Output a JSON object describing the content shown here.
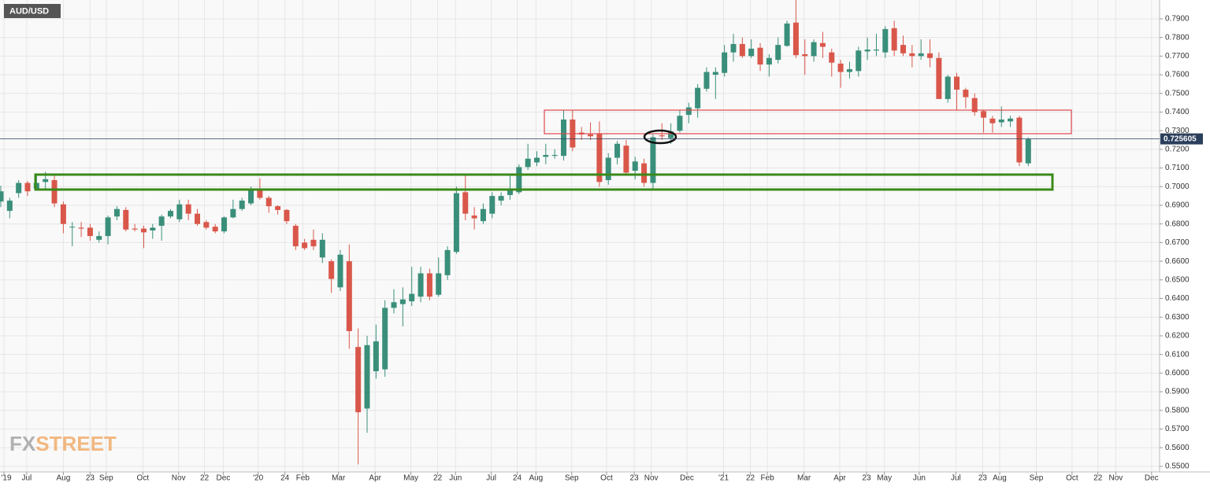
{
  "chart_data": {
    "type": "candlestick",
    "title": "AUD/USD",
    "watermark": [
      "FX",
      "STREET"
    ],
    "up_color": "#3a8f7a",
    "down_color": "#d9574a",
    "grid": true,
    "last_price": 0.725605,
    "x": [
      0,
      1,
      2,
      3,
      4,
      5,
      6,
      7,
      8,
      9,
      10,
      11,
      12,
      13,
      14,
      15,
      16,
      17,
      18,
      19,
      20,
      21,
      22,
      23,
      24,
      25,
      26,
      27,
      28,
      29,
      30,
      31,
      32,
      33,
      34,
      35,
      36,
      37,
      38,
      39,
      40,
      41,
      42,
      43,
      44,
      45,
      46,
      47,
      48,
      49,
      50,
      51,
      52,
      53,
      54,
      55,
      56,
      57,
      58,
      59,
      60,
      61,
      62,
      63,
      64,
      65,
      66,
      67,
      68,
      69,
      70,
      71,
      72,
      73,
      74,
      75,
      76,
      77,
      78,
      79,
      80,
      81,
      82,
      83,
      84,
      85,
      86,
      87,
      88,
      89,
      90,
      91,
      92,
      93,
      94,
      95,
      96,
      97,
      98,
      99,
      100,
      101,
      102,
      103,
      104,
      105,
      106,
      107,
      108,
      109,
      110,
      111,
      112,
      113,
      114,
      115
    ],
    "open": [
      0.692,
      0.687,
      0.6965,
      0.702,
      0.699,
      0.7025,
      0.7035,
      0.6905,
      0.6785,
      0.678,
      0.678,
      0.6715,
      0.6735,
      0.684,
      0.6875,
      0.6775,
      0.6775,
      0.6765,
      0.679,
      0.684,
      0.6825,
      0.6905,
      0.6855,
      0.681,
      0.6785,
      0.676,
      0.6835,
      0.688,
      0.691,
      0.6985,
      0.694,
      0.6895,
      0.6875,
      0.679,
      0.67,
      0.6715,
      0.662,
      0.66,
      0.646,
      0.66,
      0.614,
      0.581,
      0.601,
      0.602,
      0.635,
      0.637,
      0.6385,
      0.641,
      0.6535,
      0.642,
      0.6525,
      0.665,
      0.697,
      0.6845,
      0.6815,
      0.6855,
      0.6925,
      0.6955,
      0.697,
      0.7105,
      0.713,
      0.716,
      0.7165,
      0.7165,
      0.736,
      0.729,
      0.728,
      0.7285,
      0.7035,
      0.7155,
      0.722,
      0.7085,
      0.7125,
      0.702,
      0.7275,
      0.726,
      0.73,
      0.7385,
      0.742,
      0.7525,
      0.76,
      0.761,
      0.772,
      0.7765,
      0.77,
      0.7745,
      0.7655,
      0.768,
      0.7755,
      0.788,
      0.771,
      0.77,
      0.777,
      0.772,
      0.766,
      0.7615,
      0.762,
      0.7725,
      0.773,
      0.772,
      0.785,
      0.776,
      0.7715,
      0.77,
      0.7715,
      0.769,
      0.747,
      0.759,
      0.752,
      0.7475,
      0.7405,
      0.7365,
      0.7345,
      0.735,
      0.737,
      0.7125
    ],
    "high": [
      0.7005,
      0.694,
      0.7035,
      0.703,
      0.707,
      0.708,
      0.706,
      0.692,
      0.681,
      0.681,
      0.68,
      0.676,
      0.6845,
      0.6895,
      0.689,
      0.68,
      0.679,
      0.68,
      0.685,
      0.688,
      0.693,
      0.693,
      0.688,
      0.682,
      0.68,
      0.684,
      0.693,
      0.694,
      0.7,
      0.7045,
      0.695,
      0.69,
      0.688,
      0.68,
      0.672,
      0.677,
      0.675,
      0.661,
      0.666,
      0.669,
      0.624,
      0.62,
      0.626,
      0.639,
      0.645,
      0.646,
      0.657,
      0.657,
      0.656,
      0.662,
      0.668,
      0.7,
      0.707,
      0.689,
      0.691,
      0.697,
      0.697,
      0.706,
      0.712,
      0.723,
      0.719,
      0.723,
      0.72,
      0.741,
      0.741,
      0.732,
      0.7345,
      0.735,
      0.718,
      0.7245,
      0.725,
      0.716,
      0.715,
      0.728,
      0.734,
      0.734,
      0.741,
      0.745,
      0.755,
      0.764,
      0.764,
      0.776,
      0.782,
      0.78,
      0.779,
      0.777,
      0.771,
      0.78,
      0.789,
      0.801,
      0.779,
      0.779,
      0.783,
      0.774,
      0.768,
      0.767,
      0.775,
      0.78,
      0.782,
      0.786,
      0.789,
      0.781,
      0.776,
      0.779,
      0.779,
      0.772,
      0.76,
      0.761,
      0.753,
      0.75,
      0.741,
      0.738,
      0.743,
      0.738,
      0.738,
      0.7265
    ],
    "low": [
      0.689,
      0.683,
      0.694,
      0.695,
      0.698,
      0.699,
      0.689,
      0.675,
      0.668,
      0.673,
      0.671,
      0.67,
      0.669,
      0.682,
      0.676,
      0.676,
      0.667,
      0.672,
      0.671,
      0.683,
      0.681,
      0.682,
      0.679,
      0.677,
      0.675,
      0.675,
      0.683,
      0.687,
      0.69,
      0.693,
      0.686,
      0.685,
      0.68,
      0.666,
      0.666,
      0.666,
      0.659,
      0.643,
      0.644,
      0.613,
      0.551,
      0.568,
      0.597,
      0.598,
      0.632,
      0.625,
      0.636,
      0.638,
      0.639,
      0.641,
      0.65,
      0.664,
      0.682,
      0.677,
      0.68,
      0.683,
      0.69,
      0.693,
      0.696,
      0.709,
      0.711,
      0.712,
      0.715,
      0.714,
      0.719,
      0.725,
      0.725,
      0.7,
      0.701,
      0.712,
      0.706,
      0.704,
      0.7,
      0.699,
      0.725,
      0.723,
      0.729,
      0.734,
      0.737,
      0.751,
      0.747,
      0.759,
      0.767,
      0.769,
      0.769,
      0.762,
      0.759,
      0.766,
      0.775,
      0.769,
      0.76,
      0.767,
      0.769,
      0.759,
      0.753,
      0.758,
      0.759,
      0.768,
      0.77,
      0.769,
      0.77,
      0.77,
      0.764,
      0.768,
      0.764,
      0.747,
      0.745,
      0.741,
      0.742,
      0.738,
      0.729,
      0.729,
      0.732,
      0.732,
      0.711,
      0.711
    ],
    "close": [
      0.6975,
      0.6925,
      0.702,
      0.6975,
      0.702,
      0.704,
      0.691,
      0.68,
      0.6785,
      0.6775,
      0.6735,
      0.6735,
      0.6835,
      0.688,
      0.677,
      0.677,
      0.6755,
      0.678,
      0.684,
      0.687,
      0.6905,
      0.6855,
      0.68,
      0.678,
      0.676,
      0.6835,
      0.688,
      0.6925,
      0.698,
      0.694,
      0.6895,
      0.6875,
      0.6815,
      0.668,
      0.667,
      0.668,
      0.6715,
      0.6505,
      0.6635,
      0.6225,
      0.579,
      0.615,
      0.617,
      0.635,
      0.638,
      0.6395,
      0.6425,
      0.6535,
      0.641,
      0.6535,
      0.666,
      0.6965,
      0.6855,
      0.683,
      0.688,
      0.695,
      0.695,
      0.6985,
      0.7105,
      0.715,
      0.7155,
      0.717,
      0.717,
      0.736,
      0.721,
      0.728,
      0.727,
      0.7025,
      0.7155,
      0.723,
      0.7075,
      0.7135,
      0.702,
      0.7265,
      0.727,
      0.7295,
      0.738,
      0.7425,
      0.753,
      0.7615,
      0.7615,
      0.772,
      0.7765,
      0.77,
      0.774,
      0.7655,
      0.769,
      0.776,
      0.7875,
      0.7705,
      0.77,
      0.7775,
      0.775,
      0.7665,
      0.7615,
      0.763,
      0.773,
      0.7735,
      0.7735,
      0.7845,
      0.773,
      0.7715,
      0.77,
      0.7715,
      0.769,
      0.747,
      0.759,
      0.752,
      0.748,
      0.74,
      0.737,
      0.734,
      0.736,
      0.7365,
      0.713,
      0.7256
    ],
    "xlim": [
      -0.088,
      129.7
    ],
    "xticks": [
      {
        "value": 0.35,
        "label": "'19"
      },
      {
        "value": 2.9,
        "label": "Jul"
      },
      {
        "value": 7.0,
        "label": "Aug"
      },
      {
        "value": 10.0,
        "label": "23"
      },
      {
        "value": 11.8,
        "label": "Sep"
      },
      {
        "value": 15.9,
        "label": "Oct"
      },
      {
        "value": 19.9,
        "label": "Nov"
      },
      {
        "value": 22.8,
        "label": "22"
      },
      {
        "value": 24.9,
        "label": "Dec"
      },
      {
        "value": 28.8,
        "label": "'20"
      },
      {
        "value": 31.8,
        "label": "24"
      },
      {
        "value": 33.8,
        "label": "Feb"
      },
      {
        "value": 37.8,
        "label": "Mar"
      },
      {
        "value": 41.9,
        "label": "Apr"
      },
      {
        "value": 45.9,
        "label": "May"
      },
      {
        "value": 48.9,
        "label": "22"
      },
      {
        "value": 50.9,
        "label": "Jun"
      },
      {
        "value": 54.9,
        "label": "Jul"
      },
      {
        "value": 57.8,
        "label": "24"
      },
      {
        "value": 59.9,
        "label": "Aug"
      },
      {
        "value": 63.9,
        "label": "Sep"
      },
      {
        "value": 67.8,
        "label": "Oct"
      },
      {
        "value": 70.9,
        "label": "23"
      },
      {
        "value": 72.8,
        "label": "Nov"
      },
      {
        "value": 76.8,
        "label": "Dec"
      },
      {
        "value": 80.9,
        "label": "'21"
      },
      {
        "value": 83.9,
        "label": "22"
      },
      {
        "value": 85.8,
        "label": "Feb"
      },
      {
        "value": 89.9,
        "label": "Mar"
      },
      {
        "value": 93.9,
        "label": "Apr"
      },
      {
        "value": 96.9,
        "label": "23"
      },
      {
        "value": 98.9,
        "label": "May"
      },
      {
        "value": 102.8,
        "label": "Jun"
      },
      {
        "value": 106.9,
        "label": "Jul"
      },
      {
        "value": 109.9,
        "label": "23"
      },
      {
        "value": 111.8,
        "label": "Aug"
      },
      {
        "value": 115.9,
        "label": "Sep"
      },
      {
        "value": 119.9,
        "label": "Oct"
      },
      {
        "value": 122.8,
        "label": "22"
      },
      {
        "value": 124.8,
        "label": "Nov"
      },
      {
        "value": 128.8,
        "label": "Dec"
      }
    ],
    "ylim": [
      0.547,
      0.8001
    ],
    "yticks": [
      {
        "value": 0.55,
        "label": "0.5500"
      },
      {
        "value": 0.56,
        "label": "0.5600"
      },
      {
        "value": 0.57,
        "label": "0.5700"
      },
      {
        "value": 0.58,
        "label": "0.5800"
      },
      {
        "value": 0.59,
        "label": "0.5900"
      },
      {
        "value": 0.6,
        "label": "0.6000"
      },
      {
        "value": 0.61,
        "label": "0.6100"
      },
      {
        "value": 0.62,
        "label": "0.6200"
      },
      {
        "value": 0.63,
        "label": "0.6300"
      },
      {
        "value": 0.64,
        "label": "0.6400"
      },
      {
        "value": 0.65,
        "label": "0.6500"
      },
      {
        "value": 0.66,
        "label": "0.6600"
      },
      {
        "value": 0.67,
        "label": "0.6700"
      },
      {
        "value": 0.68,
        "label": "0.6800"
      },
      {
        "value": 0.69,
        "label": "0.6900"
      },
      {
        "value": 0.7,
        "label": "0.7000"
      },
      {
        "value": 0.71,
        "label": "0.7100"
      },
      {
        "value": 0.72,
        "label": "0.7200"
      },
      {
        "value": 0.73,
        "label": "0.7300"
      },
      {
        "value": 0.74,
        "label": "0.7400"
      },
      {
        "value": 0.75,
        "label": "0.7500"
      },
      {
        "value": 0.76,
        "label": "0.7600"
      },
      {
        "value": 0.77,
        "label": "0.7700"
      },
      {
        "value": 0.78,
        "label": "0.7800"
      },
      {
        "value": 0.79,
        "label": "0.7900"
      }
    ]
  }
}
